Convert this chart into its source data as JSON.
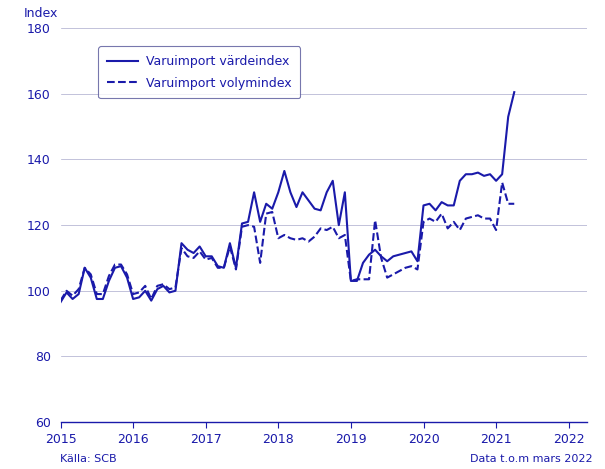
{
  "ylabel": "Index",
  "ylim": [
    60,
    180
  ],
  "yticks": [
    60,
    80,
    100,
    120,
    140,
    160,
    180
  ],
  "xlim_start": 2015.0,
  "xlim_end": 2022.25,
  "xticks": [
    2015,
    2016,
    2017,
    2018,
    2019,
    2020,
    2021,
    2022
  ],
  "line_color": "#1a1aaa",
  "source_text": "Källa: SCB",
  "data_text": "Data t.o.m mars 2022",
  "legend_entries": [
    "Varuimport värdeindex",
    "Varuimport volymindex"
  ],
  "vardeindex": [
    96.5,
    99.5,
    97.5,
    99.0,
    107.0,
    104.0,
    97.5,
    97.5,
    103.0,
    107.0,
    107.5,
    104.0,
    97.5,
    98.0,
    100.0,
    97.0,
    100.5,
    101.5,
    99.5,
    100.0,
    114.5,
    112.5,
    111.5,
    113.5,
    110.5,
    110.5,
    107.5,
    107.0,
    114.5,
    107.0,
    120.5,
    121.0,
    130.0,
    121.0,
    126.5,
    125.0,
    130.0,
    136.5,
    130.0,
    125.5,
    130.0,
    127.5,
    125.0,
    124.5,
    130.0,
    133.5,
    120.0,
    130.0,
    103.0,
    103.0,
    108.5,
    111.0,
    112.5,
    110.5,
    109.0,
    110.5,
    111.0,
    111.5,
    112.0,
    109.0,
    126.0,
    126.5,
    124.5,
    127.0,
    126.0,
    126.0,
    133.5,
    135.5,
    135.5,
    136.0,
    135.0,
    135.5,
    133.5,
    135.5,
    153.0,
    160.5
  ],
  "volymindex": [
    97.0,
    100.0,
    98.5,
    100.5,
    107.0,
    105.0,
    99.0,
    99.0,
    104.5,
    108.0,
    108.0,
    105.0,
    99.0,
    99.5,
    101.5,
    97.5,
    101.5,
    102.0,
    100.5,
    101.0,
    113.0,
    110.5,
    110.0,
    112.0,
    109.5,
    110.0,
    107.0,
    107.0,
    113.5,
    106.5,
    119.5,
    120.0,
    119.5,
    108.5,
    123.5,
    124.0,
    116.0,
    117.0,
    116.0,
    115.5,
    116.0,
    115.0,
    116.5,
    119.0,
    118.5,
    119.5,
    116.0,
    117.0,
    103.0,
    103.5,
    103.5,
    103.5,
    121.5,
    110.0,
    104.0,
    105.0,
    106.0,
    107.0,
    107.5,
    106.5,
    121.0,
    122.0,
    121.0,
    123.5,
    119.0,
    121.0,
    118.5,
    122.0,
    122.5,
    123.0,
    122.0,
    122.0,
    118.5,
    133.0,
    126.5,
    126.5
  ]
}
